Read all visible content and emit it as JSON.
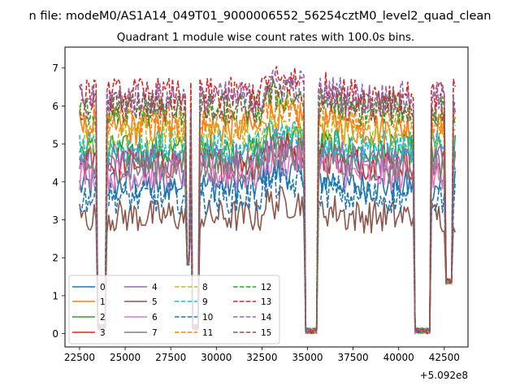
{
  "figure": {
    "suptitle": "n file: modeM0/AS1A14_049T01_9000006552_56254cztM0_level2_quad_clean"
  },
  "chart_data": {
    "type": "line",
    "title": "Quadrant 1 module wise count rates with 100.0s bins.",
    "xlabel": "",
    "ylabel": "",
    "x_offset_label": "+5.092e8",
    "xlim": [
      21700,
      43800
    ],
    "ylim": [
      -0.35,
      7.55
    ],
    "x_ticks": [
      22500,
      25000,
      27500,
      30000,
      32500,
      35000,
      37500,
      40000,
      42500
    ],
    "x_tick_labels": [
      "22500",
      "25000",
      "27500",
      "30000",
      "32500",
      "35000",
      "37500",
      "40000",
      "42500"
    ],
    "y_ticks": [
      0,
      1,
      2,
      3,
      4,
      5,
      6,
      7
    ],
    "y_tick_labels": [
      "0",
      "1",
      "2",
      "3",
      "4",
      "5",
      "6",
      "7"
    ],
    "legend_position": "lower-left",
    "legend_columns": 4,
    "data_gaps": [
      {
        "start": 23450,
        "end": 23950,
        "min": 0.1
      },
      {
        "start": 28350,
        "end": 28500,
        "min": 1.8
      },
      {
        "start": 28700,
        "end": 29050,
        "min": 0.1
      },
      {
        "start": 34900,
        "end": 35550,
        "min": 0.0
      },
      {
        "start": 40900,
        "end": 41700,
        "min": 0.0
      },
      {
        "start": 42600,
        "end": 42900,
        "min": 1.3
      }
    ],
    "series": [
      {
        "name": "0",
        "level": 3.9,
        "color": "#1f77b4",
        "dash": "solid"
      },
      {
        "name": "1",
        "level": 5.4,
        "color": "#ff7f0e",
        "dash": "solid"
      },
      {
        "name": "2",
        "level": 4.8,
        "color": "#2ca02c",
        "dash": "solid"
      },
      {
        "name": "3",
        "level": 4.5,
        "color": "#d62728",
        "dash": "solid"
      },
      {
        "name": "4",
        "level": 4.6,
        "color": "#9467bd",
        "dash": "solid"
      },
      {
        "name": "5",
        "level": 3.1,
        "color": "#8c564b",
        "dash": "solid"
      },
      {
        "name": "6",
        "level": 4.2,
        "color": "#e377c2",
        "dash": "solid"
      },
      {
        "name": "7",
        "level": 4.4,
        "color": "#7f7f7f",
        "dash": "solid"
      },
      {
        "name": "8",
        "level": 5.2,
        "color": "#bcbd22",
        "dash": "dashed"
      },
      {
        "name": "9",
        "level": 4.9,
        "color": "#17becf",
        "dash": "dashed"
      },
      {
        "name": "10",
        "level": 3.6,
        "color": "#1f77b4",
        "dash": "dashed"
      },
      {
        "name": "11",
        "level": 5.6,
        "color": "#ff7f0e",
        "dash": "dashed"
      },
      {
        "name": "12",
        "level": 5.9,
        "color": "#2ca02c",
        "dash": "dashed"
      },
      {
        "name": "13",
        "level": 6.3,
        "color": "#d62728",
        "dash": "dashed"
      },
      {
        "name": "14",
        "level": 6.2,
        "color": "#9467bd",
        "dash": "dashed"
      },
      {
        "name": "15",
        "level": 6.0,
        "color": "#8c564b",
        "dash": "dashed"
      }
    ]
  }
}
